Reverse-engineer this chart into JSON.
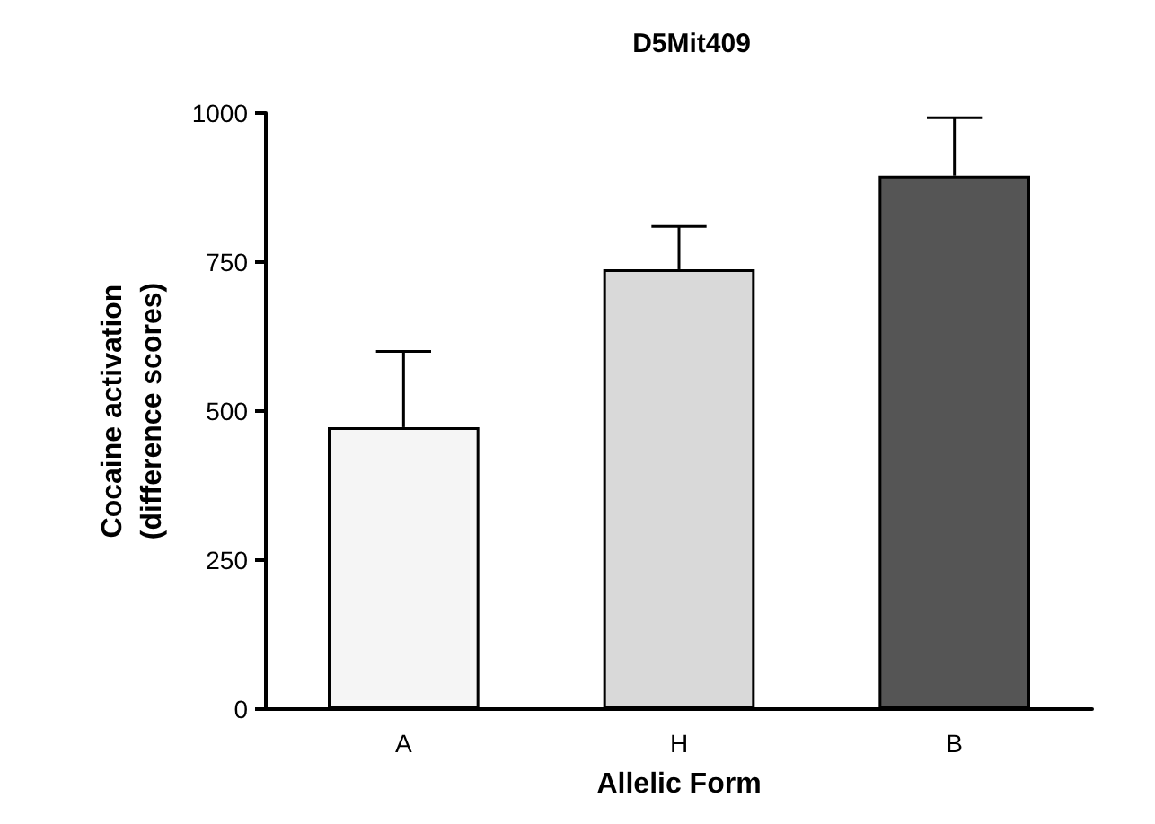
{
  "chart_data": {
    "type": "bar",
    "title": "D5Mit409",
    "xlabel": "Allelic Form",
    "ylabel": "Cocaine activation\n(difference scores)",
    "categories": [
      "A",
      "H",
      "B"
    ],
    "values": [
      473,
      738,
      895
    ],
    "colors": [
      "#f5f5f5",
      "#d9d9d9",
      "#555555"
    ],
    "errors": [
      [
        473,
        600
      ],
      [
        738,
        810
      ],
      [
        895,
        992
      ]
    ],
    "ylim": [
      0,
      1000
    ],
    "yticks": [
      0,
      250,
      500,
      750,
      1000
    ],
    "grid": false
  }
}
